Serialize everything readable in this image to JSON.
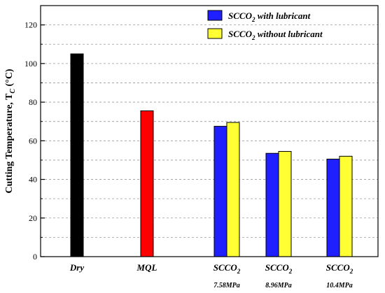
{
  "chart_data": {
    "type": "bar",
    "ylabel": "Cutting Temperature, T",
    "ylabel_sub": "C",
    "ylabel_unit": " (°C)",
    "ylim": [
      0,
      130
    ],
    "yticks": [
      0,
      20,
      40,
      60,
      80,
      100,
      120
    ],
    "grid": true,
    "legend_position": "top-right",
    "categories": [
      {
        "label": "Dry",
        "sub": "",
        "sublabel": ""
      },
      {
        "label": "MQL",
        "sub": "",
        "sublabel": ""
      },
      {
        "label": "SCCO",
        "sub": "2",
        "sublabel": "7.58MPa"
      },
      {
        "label": "SCCO",
        "sub": "2",
        "sublabel": "8.96MPa"
      },
      {
        "label": "SCCO",
        "sub": "2",
        "sublabel": "10.4MPa"
      }
    ],
    "single_bars": [
      {
        "category": "Dry",
        "value": 105,
        "color": "#000000"
      },
      {
        "category": "MQL",
        "value": 75.5,
        "color": "#ff0000"
      }
    ],
    "series": [
      {
        "name": "SCCO",
        "name_sub": "2",
        "name_suffix": " with lubricant",
        "color": "#1f1fff",
        "values": [
          null,
          null,
          67.5,
          53.5,
          50.5
        ]
      },
      {
        "name": "SCCO",
        "name_sub": "2",
        "name_suffix": " without lubricant",
        "color": "#ffff33",
        "values": [
          null,
          null,
          69.5,
          54.5,
          52
        ]
      }
    ]
  }
}
